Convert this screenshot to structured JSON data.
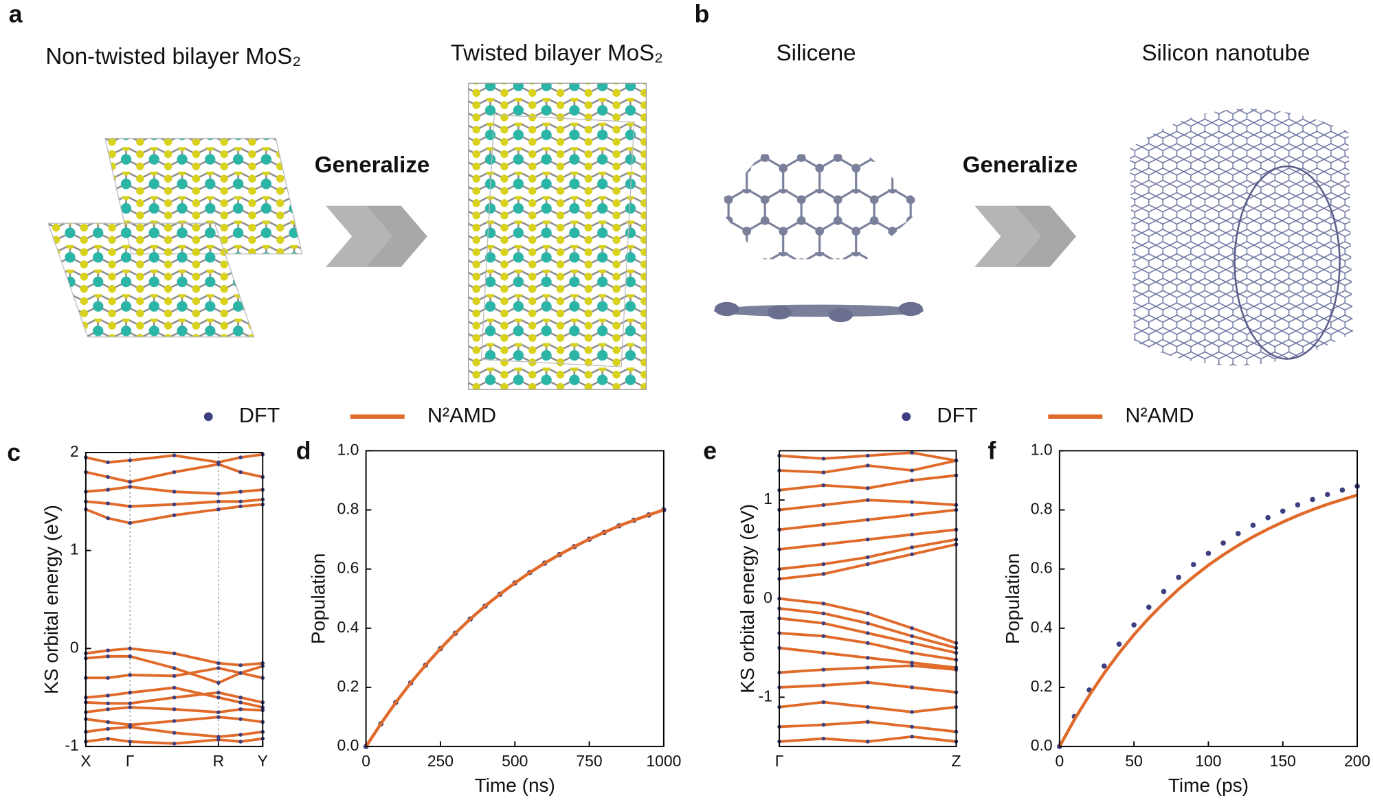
{
  "figure": {
    "panel_labels": [
      "a",
      "b"
    ],
    "structures": {
      "a_left": "Non-twisted bilayer MoS₂",
      "a_right": "Twisted bilayer MoS₂",
      "a_arrow": "Generalize",
      "b_left": "Silicene",
      "b_right": "Silicon nanotube",
      "b_arrow": "Generalize"
    }
  },
  "chart_data": [
    {
      "type": "band",
      "panel": "c",
      "ylabel": "KS orbital energy (eV)",
      "xlim": [
        0,
        1
      ],
      "xticks": [
        {
          "value": 0,
          "label": "X"
        },
        {
          "value": 0.25,
          "label": "Γ"
        },
        {
          "value": 0.75,
          "label": "R"
        },
        {
          "value": 1,
          "label": "Y"
        }
      ],
      "kpath_lines": true,
      "ylim": [
        -1,
        2
      ],
      "yticks": [
        -1,
        0,
        1,
        2
      ],
      "color": "#e06a2a",
      "dot_color": "#3d3f80",
      "x": [
        0,
        0.125,
        0.25,
        0.5,
        0.75,
        0.875,
        1
      ],
      "bands": [
        [
          1.42,
          1.33,
          1.28,
          1.36,
          1.42,
          1.45,
          1.47
        ],
        [
          1.5,
          1.48,
          1.45,
          1.47,
          1.5,
          1.5,
          1.52
        ],
        [
          1.6,
          1.62,
          1.65,
          1.6,
          1.58,
          1.6,
          1.62
        ],
        [
          1.8,
          1.75,
          1.7,
          1.8,
          1.88,
          1.8,
          1.75
        ],
        [
          1.95,
          1.9,
          1.92,
          1.97,
          1.9,
          1.95,
          1.98
        ],
        [
          -0.05,
          -0.02,
          0,
          -0.05,
          -0.15,
          -0.17,
          -0.15
        ],
        [
          -0.1,
          -0.08,
          -0.08,
          -0.2,
          -0.35,
          -0.25,
          -0.18
        ],
        [
          -0.3,
          -0.3,
          -0.27,
          -0.28,
          -0.2,
          -0.25,
          -0.3
        ],
        [
          -0.5,
          -0.48,
          -0.45,
          -0.4,
          -0.5,
          -0.55,
          -0.6
        ],
        [
          -0.55,
          -0.56,
          -0.56,
          -0.5,
          -0.45,
          -0.5,
          -0.55
        ],
        [
          -0.65,
          -0.62,
          -0.6,
          -0.62,
          -0.65,
          -0.62,
          -0.63
        ],
        [
          -0.72,
          -0.75,
          -0.78,
          -0.74,
          -0.7,
          -0.72,
          -0.75
        ],
        [
          -0.85,
          -0.82,
          -0.8,
          -0.86,
          -0.9,
          -0.88,
          -0.85
        ],
        [
          -0.95,
          -0.92,
          -0.95,
          -0.97,
          -0.93,
          -0.95,
          -0.92
        ]
      ]
    },
    {
      "type": "line",
      "panel": "d",
      "xlabel": "Time (ns)",
      "ylabel": "Population",
      "legend": true,
      "xlim": [
        0,
        1000
      ],
      "xticks": [
        0,
        250,
        500,
        750,
        1000
      ],
      "ylim": [
        0,
        1
      ],
      "yticks": [
        {
          "value": 0,
          "label": "0.0"
        },
        {
          "value": 0.2,
          "label": "0.2"
        },
        {
          "value": 0.4,
          "label": "0.4"
        },
        {
          "value": 0.6,
          "label": "0.6"
        },
        {
          "value": 0.8,
          "label": "0.8"
        },
        {
          "value": 1,
          "label": "1.0"
        }
      ],
      "x": [
        0,
        50,
        100,
        150,
        200,
        250,
        300,
        350,
        400,
        450,
        500,
        550,
        600,
        650,
        700,
        750,
        800,
        850,
        900,
        950,
        1000
      ],
      "series": [
        {
          "name": "DFT",
          "color": "#3d3f80",
          "marker": "dots",
          "values": [
            0,
            0.077,
            0.149,
            0.215,
            0.275,
            0.331,
            0.383,
            0.431,
            0.475,
            0.515,
            0.553,
            0.588,
            0.62,
            0.649,
            0.676,
            0.701,
            0.724,
            0.746,
            0.765,
            0.783,
            0.8
          ]
        },
        {
          "name": "N²AMD",
          "color": "#e06a2a",
          "marker": "line",
          "values": [
            0,
            0.077,
            0.149,
            0.215,
            0.275,
            0.331,
            0.383,
            0.431,
            0.475,
            0.515,
            0.553,
            0.588,
            0.62,
            0.649,
            0.676,
            0.701,
            0.724,
            0.746,
            0.765,
            0.783,
            0.8
          ]
        }
      ]
    },
    {
      "type": "band",
      "panel": "e",
      "ylabel": "KS orbital energy (eV)",
      "xlim": [
        0,
        1
      ],
      "xticks": [
        {
          "value": 0,
          "label": "Γ"
        },
        {
          "value": 1,
          "label": "Z"
        }
      ],
      "kpath_lines": false,
      "ylim": [
        -1.5,
        1.5
      ],
      "yticks": [
        -1,
        0,
        1
      ],
      "color": "#e06a2a",
      "dot_color": "#3d3f80",
      "x": [
        0,
        0.25,
        0.5,
        0.75,
        1
      ],
      "bands": [
        [
          0.2,
          0.25,
          0.35,
          0.45,
          0.55
        ],
        [
          0.3,
          0.35,
          0.42,
          0.52,
          0.6
        ],
        [
          0.5,
          0.55,
          0.6,
          0.65,
          0.7
        ],
        [
          0.7,
          0.75,
          0.8,
          0.85,
          0.9
        ],
        [
          0.9,
          0.95,
          1.0,
          0.98,
          0.95
        ],
        [
          1.1,
          1.15,
          1.12,
          1.2,
          1.25
        ],
        [
          1.3,
          1.28,
          1.35,
          1.3,
          1.4
        ],
        [
          1.45,
          1.42,
          1.45,
          1.48,
          1.4
        ],
        [
          0,
          -0.05,
          -0.15,
          -0.3,
          -0.45
        ],
        [
          -0.1,
          -0.15,
          -0.25,
          -0.38,
          -0.5
        ],
        [
          -0.2,
          -0.25,
          -0.35,
          -0.45,
          -0.55
        ],
        [
          -0.35,
          -0.38,
          -0.45,
          -0.55,
          -0.62
        ],
        [
          -0.5,
          -0.55,
          -0.6,
          -0.65,
          -0.7
        ],
        [
          -0.75,
          -0.72,
          -0.7,
          -0.68,
          -0.72
        ],
        [
          -0.9,
          -0.88,
          -0.85,
          -0.9,
          -0.95
        ],
        [
          -1.1,
          -1.05,
          -1.1,
          -1.15,
          -1.1
        ],
        [
          -1.3,
          -1.28,
          -1.25,
          -1.3,
          -1.35
        ],
        [
          -1.45,
          -1.42,
          -1.45,
          -1.4,
          -1.45
        ]
      ]
    },
    {
      "type": "line",
      "panel": "f",
      "xlabel": "Time (ps)",
      "ylabel": "Population",
      "legend": true,
      "xlim": [
        0,
        200
      ],
      "xticks": [
        0,
        50,
        100,
        150,
        200
      ],
      "ylim": [
        0,
        1
      ],
      "yticks": [
        {
          "value": 0,
          "label": "0.0"
        },
        {
          "value": 0.2,
          "label": "0.2"
        },
        {
          "value": 0.4,
          "label": "0.4"
        },
        {
          "value": 0.6,
          "label": "0.6"
        },
        {
          "value": 0.8,
          "label": "0.8"
        },
        {
          "value": 1,
          "label": "1.0"
        }
      ],
      "x": [
        0,
        10,
        20,
        30,
        40,
        50,
        60,
        70,
        80,
        90,
        100,
        110,
        120,
        130,
        140,
        150,
        160,
        170,
        180,
        190,
        200
      ],
      "series": [
        {
          "name": "DFT",
          "color": "#3d3f80",
          "marker": "dots",
          "values": [
            0,
            0.101,
            0.191,
            0.272,
            0.346,
            0.411,
            0.471,
            0.524,
            0.572,
            0.615,
            0.653,
            0.688,
            0.72,
            0.748,
            0.774,
            0.796,
            0.817,
            0.835,
            0.852,
            0.867,
            0.88
          ]
        },
        {
          "name": "N²AMD",
          "color": "#e06a2a",
          "marker": "line",
          "values": [
            0,
            0.091,
            0.173,
            0.248,
            0.316,
            0.378,
            0.434,
            0.485,
            0.532,
            0.574,
            0.613,
            0.648,
            0.68,
            0.709,
            0.735,
            0.759,
            0.781,
            0.801,
            0.819,
            0.835,
            0.85
          ]
        }
      ]
    }
  ]
}
